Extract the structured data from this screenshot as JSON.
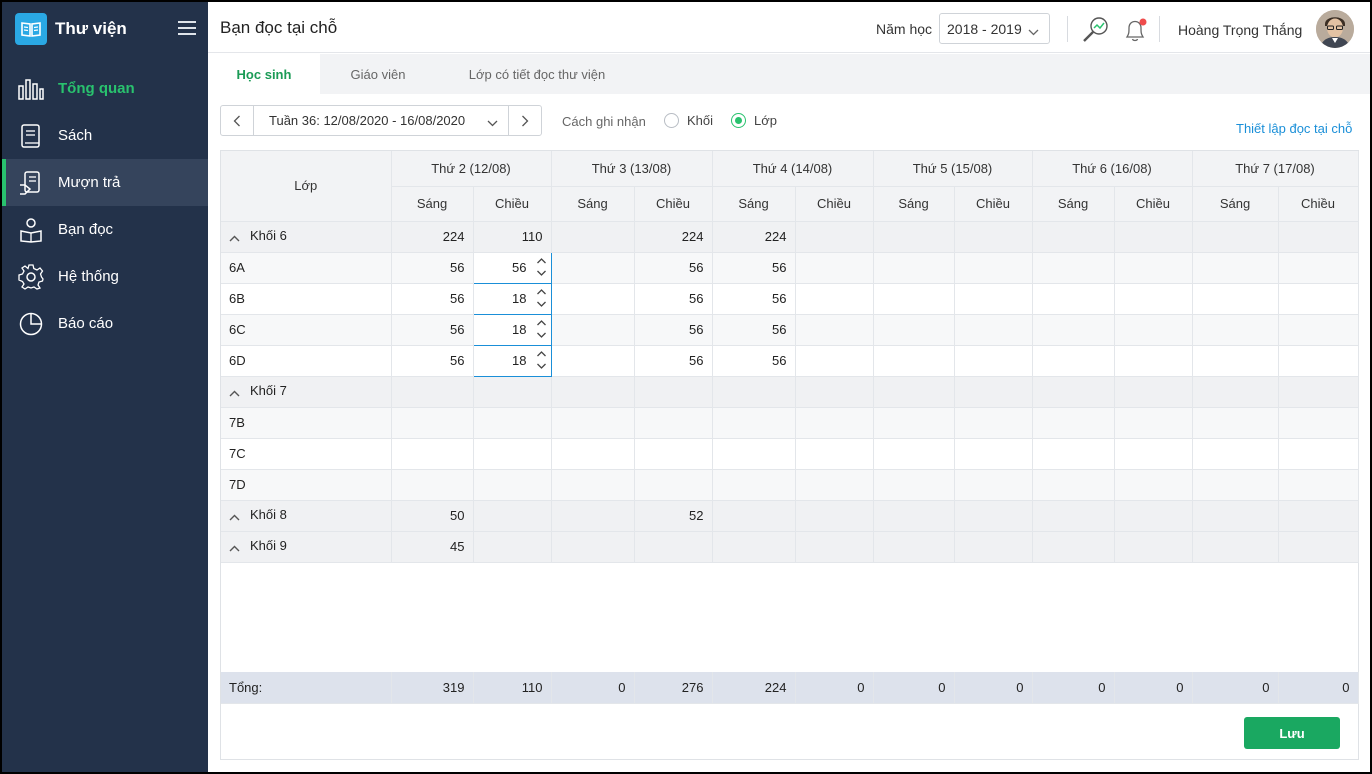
{
  "app": {
    "title": "Thư viện"
  },
  "sidebar": {
    "items": [
      {
        "label": "Tổng quan",
        "icon": "bar-chart-icon"
      },
      {
        "label": "Sách",
        "icon": "book-icon"
      },
      {
        "label": "Mượn trả",
        "icon": "borrow-icon"
      },
      {
        "label": "Bạn đọc",
        "icon": "reader-icon"
      },
      {
        "label": "Hệ thống",
        "icon": "gear-icon"
      },
      {
        "label": "Báo cáo",
        "icon": "pie-chart-icon"
      }
    ]
  },
  "header": {
    "page_title": "Bạn đọc tại chỗ",
    "year_label": "Năm học",
    "year_value": "2018 - 2019",
    "user_name": "Hoàng Trọng  Thắng"
  },
  "tabs": [
    {
      "label": "Học sinh"
    },
    {
      "label": "Giáo viên"
    },
    {
      "label": "Lớp có tiết đọc thư viện"
    }
  ],
  "toolbar": {
    "week": "Tuần 36: 12/08/2020 - 16/08/2020",
    "record_label": "Cách ghi nhận",
    "radio_block": "Khối",
    "radio_class": "Lớp",
    "selected": "Lớp",
    "setup_link": "Thiết lập đọc tại chỗ"
  },
  "grid": {
    "class_header": "Lớp",
    "days": [
      "Thứ 2 (12/08)",
      "Thứ 3 (13/08)",
      "Thứ 4 (14/08)",
      "Thứ 5 (15/08)",
      "Thứ 6 (16/08)",
      "Thứ 7 (17/08)"
    ],
    "morning": "Sáng",
    "afternoon": "Chiều",
    "rows": [
      {
        "type": "group",
        "name": "Khối 6",
        "values": [
          "224",
          "110",
          "",
          "224",
          "224",
          "",
          "",
          "",
          "",
          "",
          "",
          ""
        ]
      },
      {
        "type": "row",
        "name": "6A",
        "values": [
          "56",
          "56",
          "",
          "56",
          "56",
          "",
          "",
          "",
          "",
          "",
          "",
          ""
        ]
      },
      {
        "type": "row",
        "name": "6B",
        "values": [
          "56",
          "18",
          "",
          "56",
          "56",
          "",
          "",
          "",
          "",
          "",
          "",
          ""
        ]
      },
      {
        "type": "row",
        "name": "6C",
        "values": [
          "56",
          "18",
          "",
          "56",
          "56",
          "",
          "",
          "",
          "",
          "",
          "",
          ""
        ]
      },
      {
        "type": "row",
        "name": "6D",
        "values": [
          "56",
          "18",
          "",
          "56",
          "56",
          "",
          "",
          "",
          "",
          "",
          "",
          ""
        ]
      },
      {
        "type": "group",
        "name": "Khối 7",
        "values": [
          "",
          "",
          "",
          "",
          "",
          "",
          "",
          "",
          "",
          "",
          "",
          ""
        ]
      },
      {
        "type": "row",
        "name": "7B",
        "values": [
          "",
          "",
          "",
          "",
          "",
          "",
          "",
          "",
          "",
          "",
          "",
          ""
        ]
      },
      {
        "type": "row",
        "name": "7C",
        "values": [
          "",
          "",
          "",
          "",
          "",
          "",
          "",
          "",
          "",
          "",
          "",
          ""
        ]
      },
      {
        "type": "row",
        "name": "7D",
        "values": [
          "",
          "",
          "",
          "",
          "",
          "",
          "",
          "",
          "",
          "",
          "",
          ""
        ]
      },
      {
        "type": "group",
        "name": "Khối 8",
        "values": [
          "50",
          "",
          "",
          "52",
          "",
          "",
          "",
          "",
          "",
          "",
          "",
          ""
        ]
      },
      {
        "type": "group",
        "name": "Khối 9",
        "values": [
          "45",
          "",
          "",
          "",
          "",
          "",
          "",
          "",
          "",
          "",
          "",
          ""
        ]
      }
    ],
    "total_label": "Tổng:",
    "totals": [
      "319",
      "110",
      "0",
      "276",
      "224",
      "0",
      "0",
      "0",
      "0",
      "0",
      "0",
      "0"
    ]
  },
  "actions": {
    "save": "Lưu"
  },
  "colors": {
    "sidebar": "#23324a",
    "accent": "#29c26e",
    "link": "#1a8fd8",
    "save": "#1aa861"
  }
}
